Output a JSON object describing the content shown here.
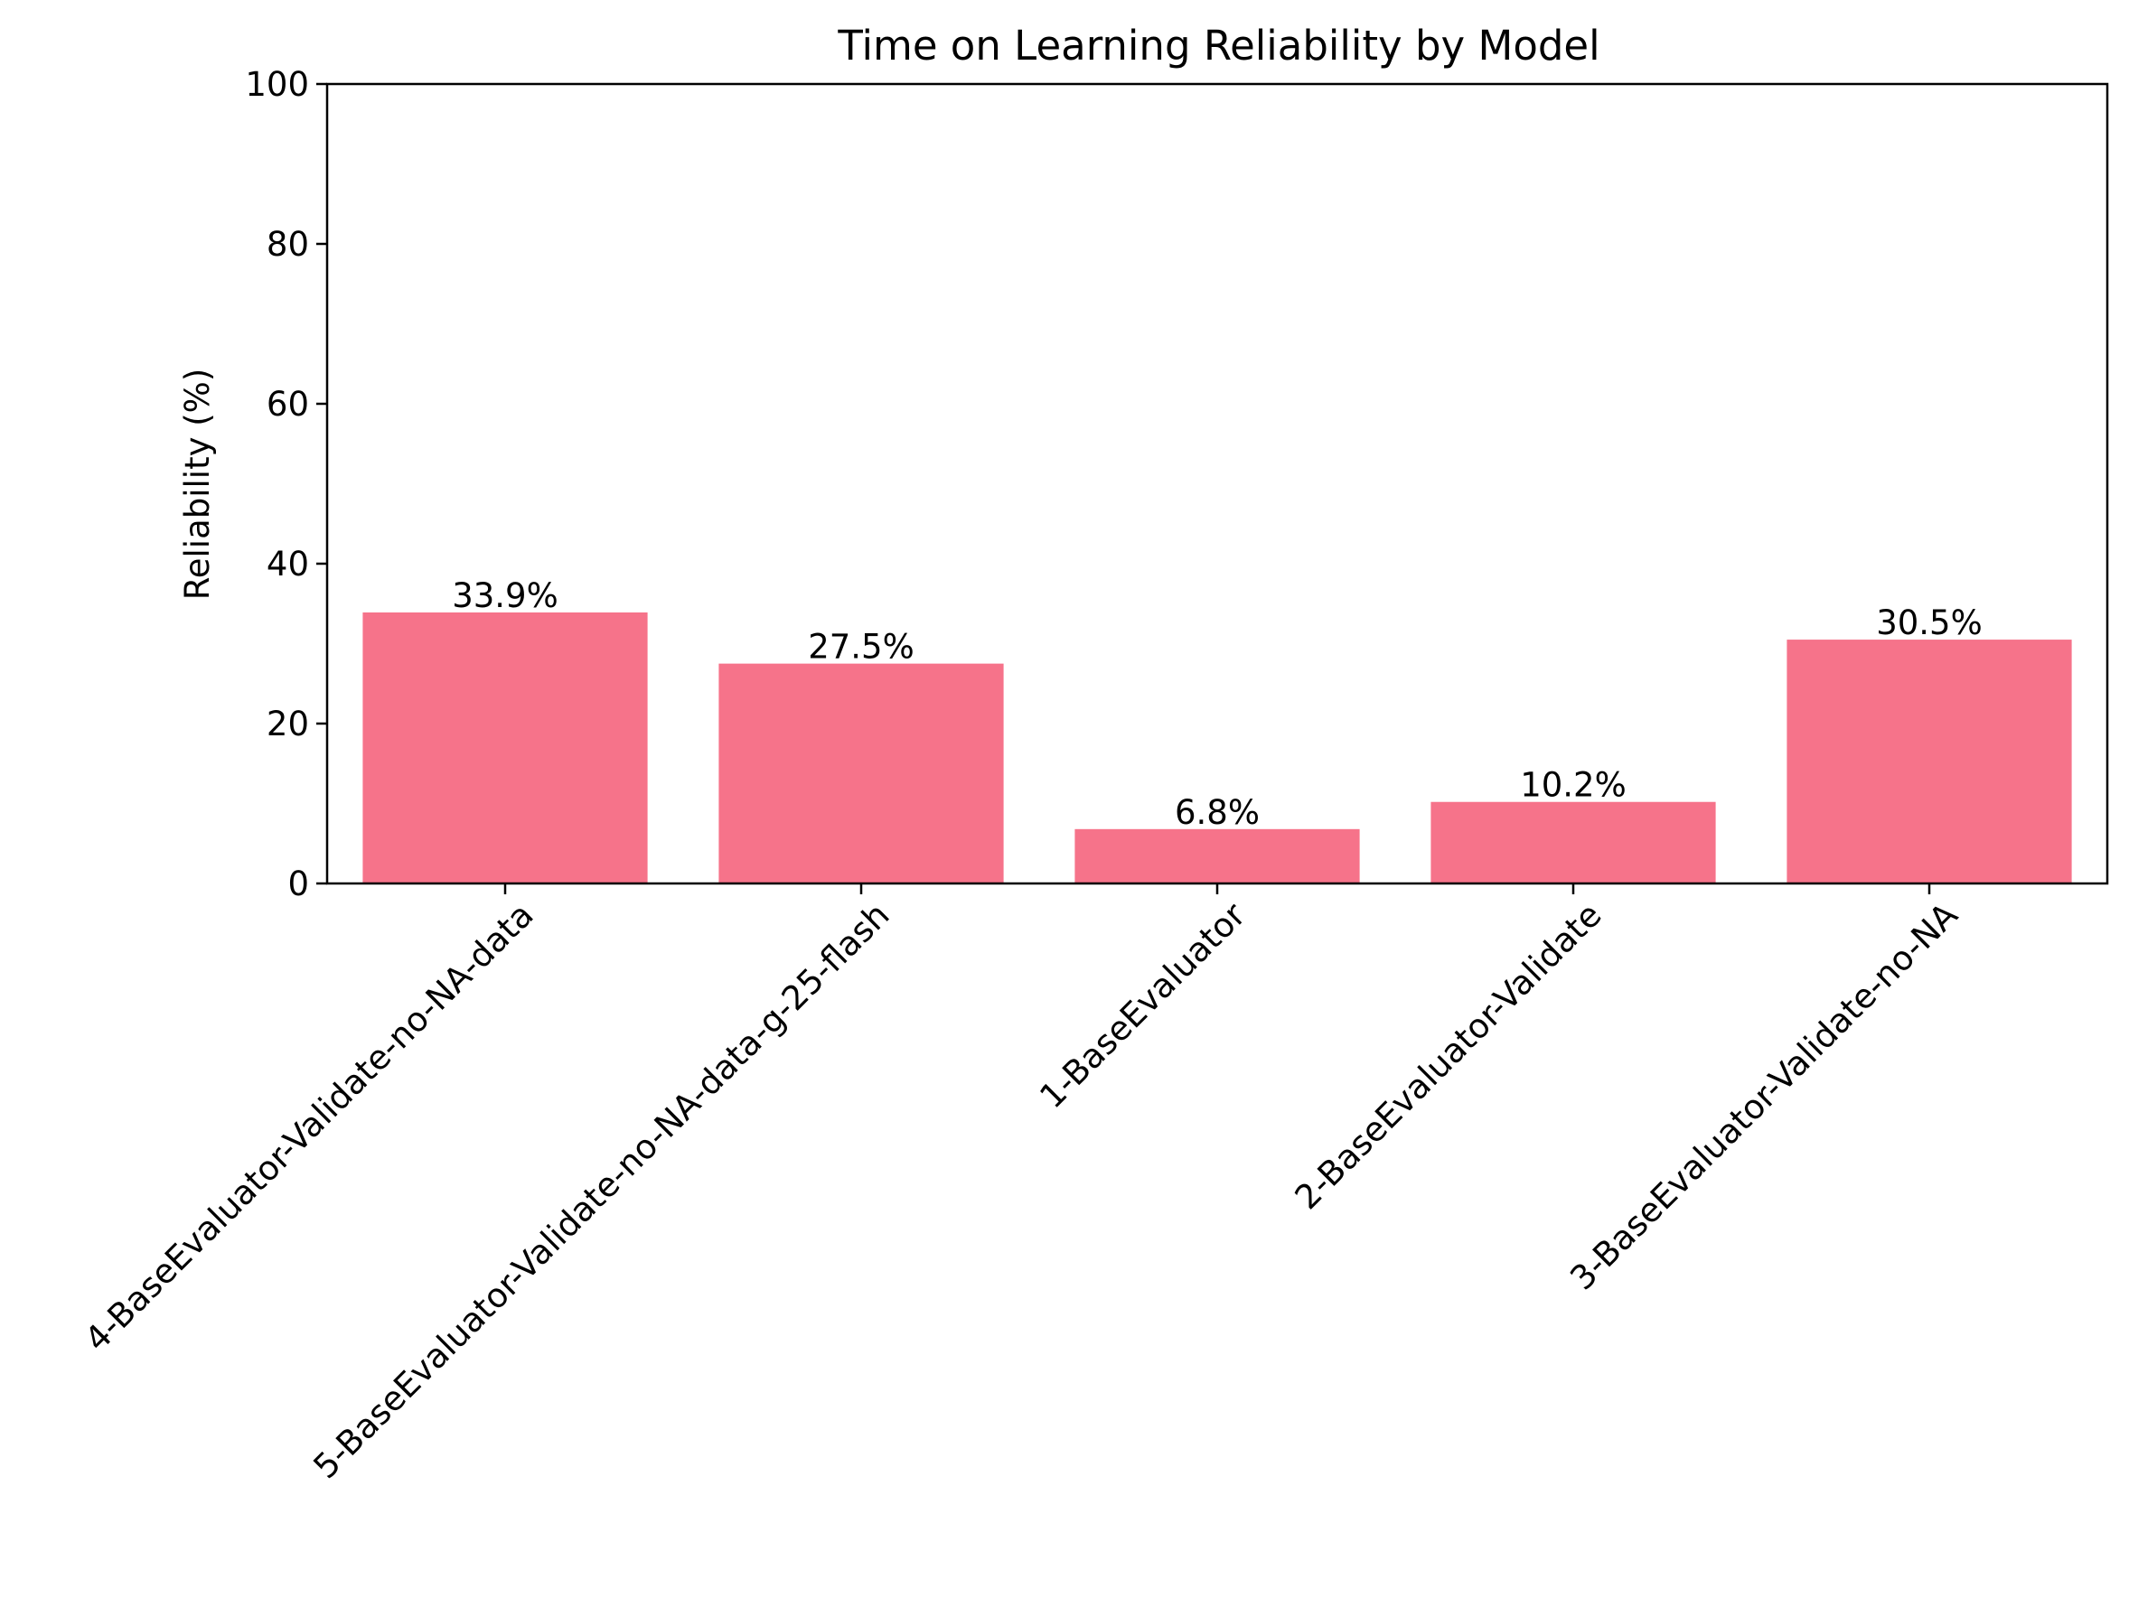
{
  "chart_data": {
    "type": "bar",
    "title": "Time on Learning Reliability by Model",
    "xlabel": "",
    "ylabel": "Reliability (%)",
    "ylim": [
      0,
      100
    ],
    "yticks": [
      0,
      20,
      40,
      60,
      80,
      100
    ],
    "categories": [
      "4-BaseEvaluator-Validate-no-NA-data",
      "5-BaseEvaluator-Validate-no-NA-data-g-25-flash",
      "1-BaseEvaluator",
      "2-BaseEvaluator-Validate",
      "3-BaseEvaluator-Validate-no-NA"
    ],
    "values": [
      33.9,
      27.5,
      6.8,
      10.2,
      30.5
    ],
    "value_labels": [
      "33.9%",
      "27.5%",
      "6.8%",
      "10.2%",
      "30.5%"
    ],
    "bar_color": "#f6738a",
    "grid": false,
    "legend": "none"
  }
}
